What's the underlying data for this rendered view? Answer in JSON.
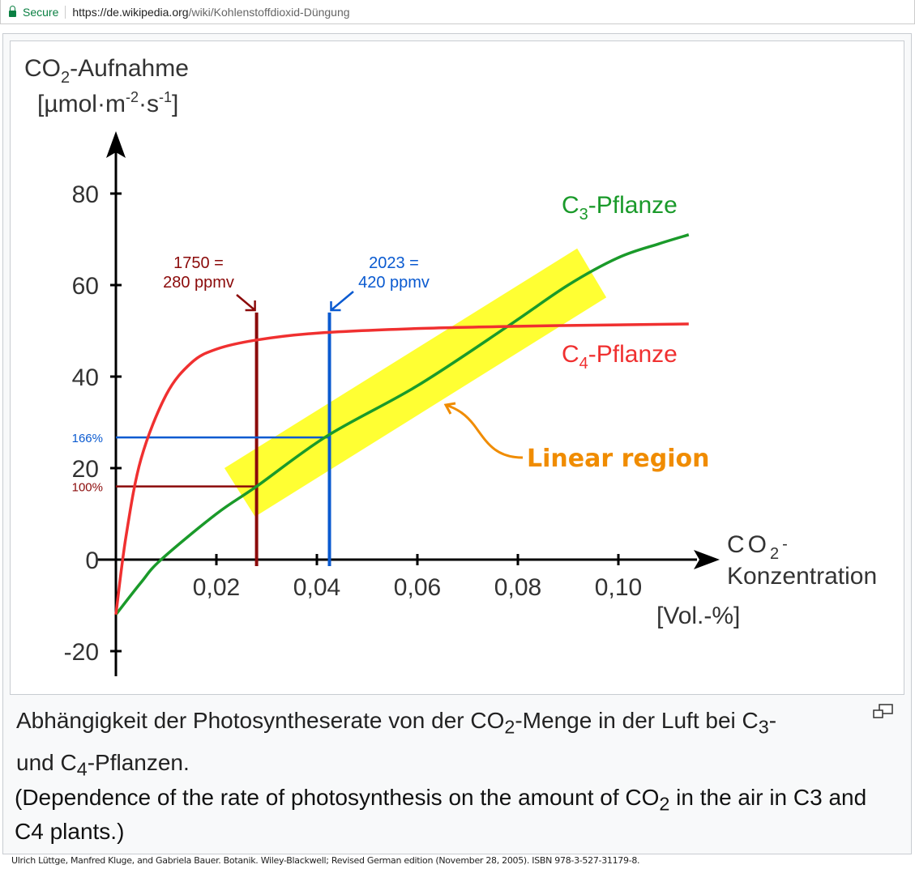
{
  "browser": {
    "secure_label": "Secure",
    "url_host": "https://de.wikipedia.org",
    "url_path": "/wiki/Kohlenstoffdioxid-Düngung"
  },
  "caption": {
    "de_a": "Abhängigkeit der Photosyntheserate von der CO",
    "de_sub": "2",
    "de_b": "-Menge in der Luft bei C",
    "de_sub3": "3",
    "de_c": "-",
    "de_d": "und C",
    "de_sub4": "4",
    "de_e": "-Pflanzen.",
    "en_a": "(Dependence of the rate of photosynthesis on the amount of ",
    "en_co": "CO",
    "en_sub": "2",
    "en_b": " in the air in C3 and C4 plants.)"
  },
  "citation": "Ulrich Lüttge, Manfred Kluge, and Gabriela Bauer. Botanik. Wiley-Blackwell; Revised German edition (November 28, 2005). ISBN 978-3-527-31179-8.",
  "chart_data": {
    "type": "line",
    "ylabel": {
      "line1": "CO",
      "sub": "2",
      "rest": "-Aufnahme",
      "line2": "[µmol·m",
      "sup1": "-2",
      "mid": "·s",
      "sup2": "-1",
      "end": "]"
    },
    "xlabel": {
      "line1": "CO",
      "sub": "2",
      "dash": "-",
      "line2": "Konzentration",
      "line3": "[Vol.-%]"
    },
    "xticks": [
      {
        "v": 0.02,
        "label": "0,02"
      },
      {
        "v": 0.04,
        "label": "0,04"
      },
      {
        "v": 0.06,
        "label": "0,06"
      },
      {
        "v": 0.08,
        "label": "0,08"
      },
      {
        "v": 0.1,
        "label": "0,10"
      }
    ],
    "yticks": [
      {
        "v": 80,
        "label": "80"
      },
      {
        "v": 60,
        "label": "60"
      },
      {
        "v": 40,
        "label": "40"
      },
      {
        "v": 20,
        "label": "20"
      },
      {
        "v": 0,
        "label": "0"
      },
      {
        "v": -20,
        "label": "-20"
      }
    ],
    "xlim": [
      0,
      0.12
    ],
    "ylim": [
      -25,
      95
    ],
    "series": [
      {
        "name": "C3-Pflanze",
        "label_main": "C",
        "label_sub": "3",
        "label_rest": "-Pflanze",
        "color": "#1a9a2a",
        "x": [
          0,
          0.005,
          0.009,
          0.02,
          0.028,
          0.042,
          0.06,
          0.078,
          0.09,
          0.1,
          0.108,
          0.114
        ],
        "y": [
          -12,
          -5,
          0,
          10,
          16,
          27,
          38,
          51,
          60,
          66,
          69,
          71
        ]
      },
      {
        "name": "C4-Pflanze",
        "label_main": "C",
        "label_sub": "4",
        "label_rest": "-Pflanze",
        "color": "#f03030",
        "x": [
          0,
          0.002,
          0.005,
          0.01,
          0.015,
          0.02,
          0.028,
          0.04,
          0.06,
          0.08,
          0.1,
          0.114
        ],
        "y": [
          -12,
          5,
          22,
          36,
          43,
          46,
          48,
          49.5,
          50.5,
          51,
          51.3,
          51.5
        ]
      }
    ],
    "markers": [
      {
        "x": 0.028,
        "ytop": 54,
        "yh": 16,
        "label1": "1750 =",
        "label2": "280 ppmv",
        "pct": "100%",
        "color": "#8b0a0a"
      },
      {
        "x": 0.0425,
        "ytop": 54,
        "yh": 26.7,
        "label1": "2023 =",
        "label2": "420 ppmv",
        "pct": "166%",
        "color": "#0a5ad0"
      }
    ],
    "highlight": {
      "label": "Linear region",
      "color": "#ffff33",
      "label_color": "#f08c00",
      "corners": [
        [
          0.0216,
          20
        ],
        [
          0.0918,
          68
        ],
        [
          0.0976,
          57.3
        ],
        [
          0.0277,
          9.4
        ]
      ]
    }
  }
}
